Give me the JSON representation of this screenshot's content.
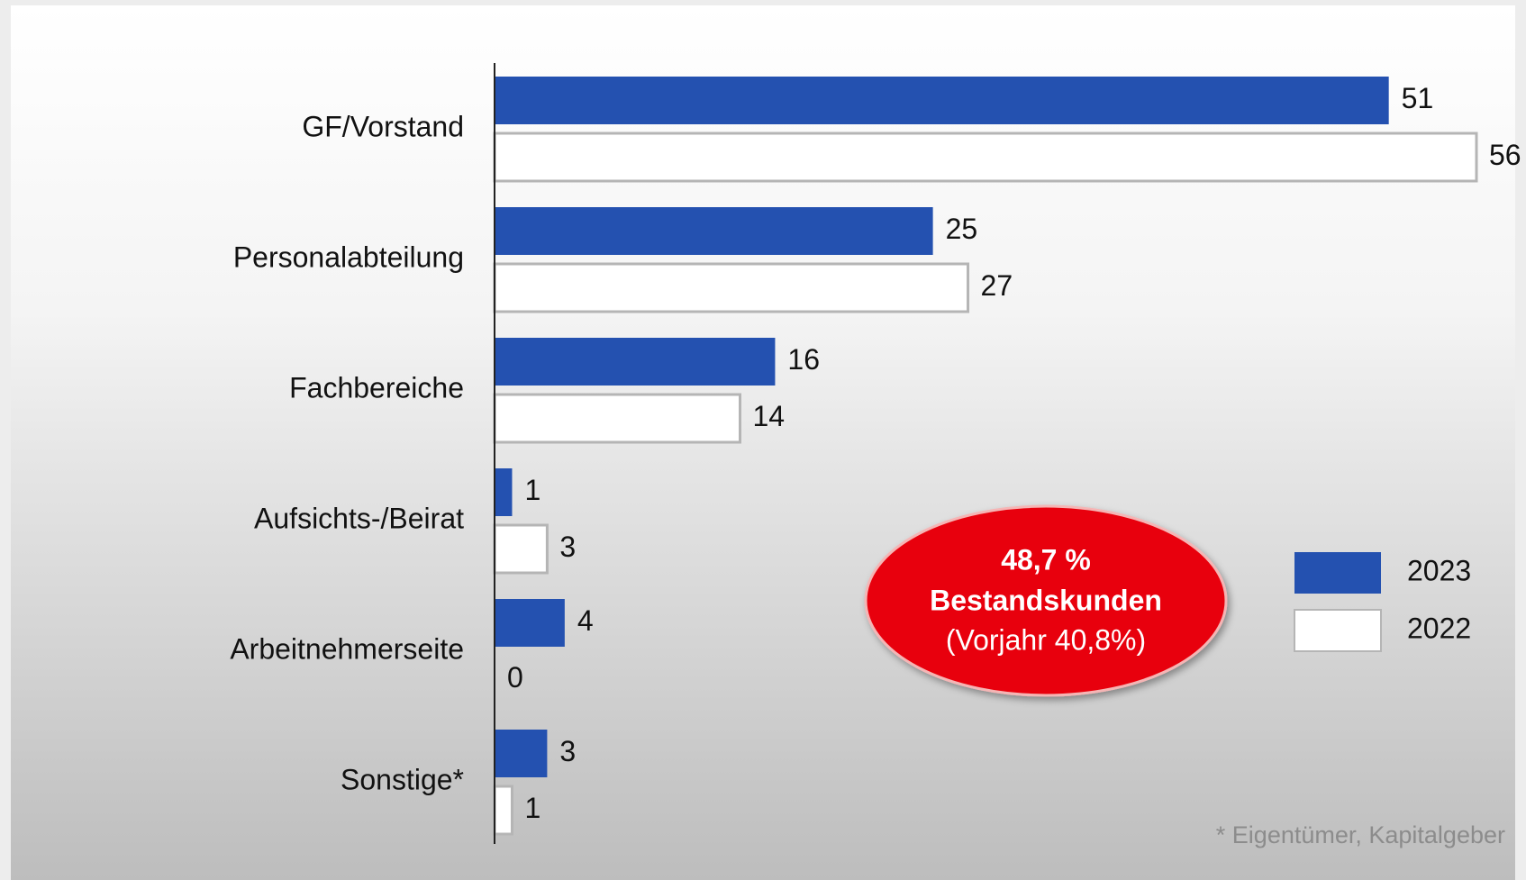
{
  "chart_data": {
    "type": "bar",
    "orientation": "horizontal",
    "categories": [
      "GF/Vorstand",
      "Personalabteilung",
      "Fachbereiche",
      "Aufsichts-/Beirat",
      "Arbeitnehmerseite",
      "Sonstige*"
    ],
    "series": [
      {
        "name": "2023",
        "color": "#2451b0",
        "values": [
          51,
          25,
          16,
          1,
          4,
          3
        ]
      },
      {
        "name": "2022",
        "color": "#ffffff",
        "values": [
          56,
          27,
          14,
          3,
          0,
          1
        ]
      }
    ],
    "xlim": [
      0,
      56
    ],
    "legend": "right",
    "annotation": {
      "headline": "48,7 %",
      "subline": "Bestandskunden",
      "note": "(Vorjahr 40,8%)"
    },
    "footnote": "* Eigentümer, Kapitalgeber"
  }
}
